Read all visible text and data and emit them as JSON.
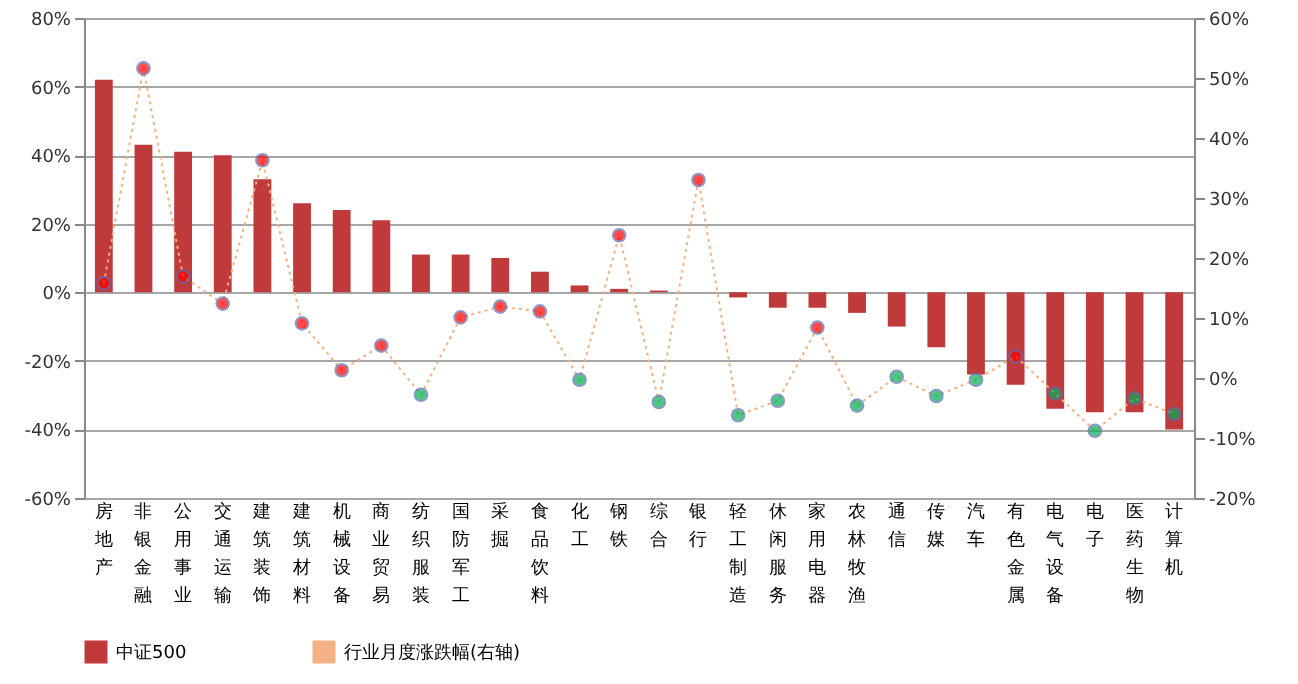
{
  "chart_data": {
    "type": "bar",
    "categories": [
      "房地产",
      "非银金融",
      "公用事业",
      "交通运输",
      "建筑装饰",
      "建筑材料",
      "机械设备",
      "商业贸易",
      "纺织服装",
      "国防军工",
      "采掘",
      "食品饮料",
      "化工",
      "钢铁",
      "综合",
      "银行",
      "轻工制造",
      "休闲服务",
      "家用电器",
      "农林牧渔",
      "通信",
      "传媒",
      "汽车",
      "有色金属",
      "电气设备",
      "电子",
      "医药生物",
      "计算机"
    ],
    "series": [
      {
        "name": "中证500",
        "color": "#c0393b",
        "values": [
          62,
          43,
          41,
          40,
          33,
          26,
          24,
          21,
          11,
          11,
          10,
          6,
          2,
          1,
          0.5,
          0,
          -1.5,
          -4.5,
          -4.5,
          -6,
          -10,
          -16,
          -24,
          -27,
          -34,
          -35,
          -35,
          -40
        ]
      },
      {
        "name": "行业月度涨跌幅(右轴)",
        "type": "line",
        "axis": "y2",
        "color": "#f4b183",
        "line_style": "dotted",
        "marker": "circle",
        "colors": [
          "#ff0000",
          "#ff0000",
          "#ff0000",
          "#ff0000",
          "#ff0000",
          "#ff0000",
          "#ff0000",
          "#ff0000",
          "#00b050",
          "#ff0000",
          "#ff0000",
          "#ff0000",
          "#00b050",
          "#ff0000",
          "#00b050",
          "#ff0000",
          "#00b050",
          "#00b050",
          "#ff0000",
          "#00b050",
          "#00b050",
          "#00b050",
          "#00b050",
          "#ff0000",
          "#00b050",
          "#00b050",
          "#00b050",
          "#00b050"
        ],
        "values": [
          15.8,
          51.6,
          16.9,
          12.4,
          36.3,
          9.1,
          1.3,
          5.4,
          -2.8,
          10.1,
          11.9,
          11.1,
          -0.3,
          23.8,
          -4,
          33,
          -6.2,
          -3.8,
          8.4,
          -4.6,
          0.2,
          -3,
          -0.3,
          3.6,
          -2.6,
          -8.8,
          -3.4,
          -6
        ]
      }
    ],
    "ylim": [
      -60,
      80
    ],
    "yticks": [
      {
        "value": -60,
        "label": "-60%"
      },
      {
        "value": -40,
        "label": "-40%"
      },
      {
        "value": -20,
        "label": "-20%"
      },
      {
        "value": 0,
        "label": "0%"
      },
      {
        "value": 20,
        "label": "20%"
      },
      {
        "value": 40,
        "label": "40%"
      },
      {
        "value": 60,
        "label": "60%"
      },
      {
        "value": 80,
        "label": "80%"
      }
    ],
    "y2lim": [
      -20,
      60
    ],
    "y2ticks": [
      {
        "value": -20,
        "label": "-20%"
      },
      {
        "value": -10,
        "label": "-10%"
      },
      {
        "value": 0,
        "label": "0%"
      },
      {
        "value": 10,
        "label": "10%"
      },
      {
        "value": 20,
        "label": "20%"
      },
      {
        "value": 30,
        "label": "30%"
      },
      {
        "value": 40,
        "label": "40%"
      },
      {
        "value": 50,
        "label": "50%"
      },
      {
        "value": 60,
        "label": "60%"
      }
    ],
    "grid": "y",
    "legend": "bottom"
  }
}
